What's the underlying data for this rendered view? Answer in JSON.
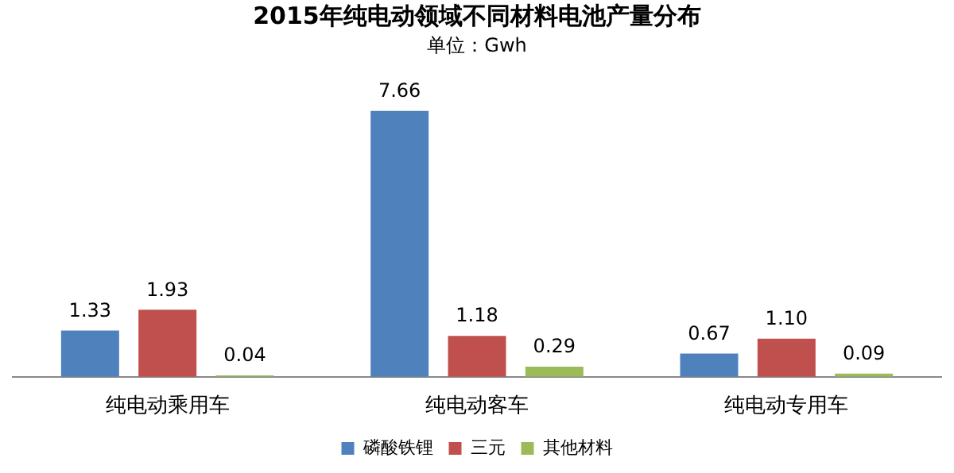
{
  "chart_data": {
    "type": "bar",
    "title": "2015年纯电动领域不同材料电池产量分布",
    "subtitle": "单位：Gwh",
    "categories": [
      "纯电动乘用车",
      "纯电动客车",
      "纯电动专用车"
    ],
    "series": [
      {
        "name": "磷酸铁锂",
        "color": "#4f81bd",
        "values": [
          1.33,
          7.66,
          0.67
        ],
        "value_labels": [
          "1.33",
          "7.66",
          "0.67"
        ]
      },
      {
        "name": "三元",
        "color": "#c0504d",
        "values": [
          1.93,
          1.18,
          1.1
        ],
        "value_labels": [
          "1.93",
          "1.18",
          "1.10"
        ]
      },
      {
        "name": "其他材料",
        "color": "#9bbb59",
        "values": [
          0.04,
          0.29,
          0.09
        ],
        "value_labels": [
          "0.04",
          "0.29",
          "0.09"
        ]
      }
    ],
    "grid": false,
    "legend": "bottom"
  }
}
